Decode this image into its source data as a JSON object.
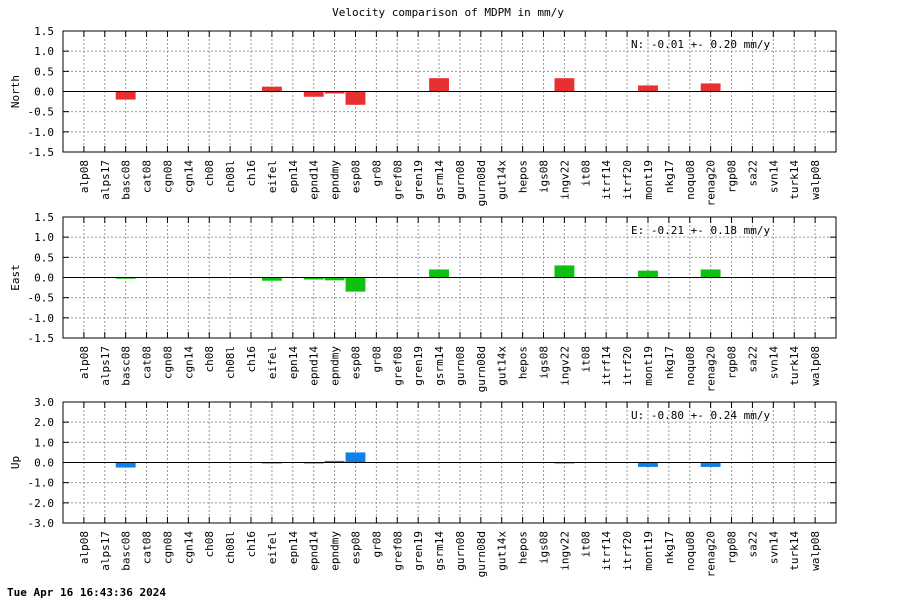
{
  "title": "Velocity comparison of MDPM in mm/y",
  "timestamp": "Tue Apr 16 16:43:36 2024",
  "chart_data": [
    {
      "type": "bar",
      "ylabel": "North",
      "ylim": [
        -1.5,
        1.5
      ],
      "yticks": [
        "-1.5",
        "-1.0",
        "-0.5",
        "0.0",
        "0.5",
        "1.0",
        "1.5"
      ],
      "ytick_values": [
        -1.5,
        -1.0,
        -0.5,
        0.0,
        0.5,
        1.0,
        1.5
      ],
      "grid": true,
      "color": "#e83030",
      "annotation": "N:  -0.01 +-  0.20 mm/y",
      "categories": [
        "alp08",
        "alps17",
        "basc08",
        "cat08",
        "cgn08",
        "cgn14",
        "ch08",
        "ch08l",
        "ch16",
        "eifel",
        "epn14",
        "epnd14",
        "epndmy",
        "esp08",
        "gr08",
        "gref08",
        "gren19",
        "gsrm14",
        "gurn08",
        "gurn08d",
        "gut14x",
        "hepos",
        "igs08",
        "ingv22",
        "it08",
        "itrf14",
        "itrf20",
        "mont19",
        "nkg17",
        "noqu08",
        "renag20",
        "rgp08",
        "sa22",
        "svn14",
        "turk14",
        "walp08"
      ],
      "values": [
        0,
        0,
        -0.2,
        0,
        0,
        0,
        0,
        0,
        0,
        0.12,
        0,
        -0.13,
        -0.05,
        -0.33,
        0,
        0,
        0,
        0.33,
        0,
        0,
        0,
        0,
        0,
        0.33,
        0,
        0,
        0,
        0.15,
        0,
        0,
        0.2,
        0,
        0,
        0,
        0,
        0
      ]
    },
    {
      "type": "bar",
      "ylabel": "East",
      "ylim": [
        -1.5,
        1.5
      ],
      "yticks": [
        "-1.5",
        "-1.0",
        "-0.5",
        "0.0",
        "0.5",
        "1.0",
        "1.5"
      ],
      "ytick_values": [
        -1.5,
        -1.0,
        -0.5,
        0.0,
        0.5,
        1.0,
        1.5
      ],
      "grid": true,
      "color": "#10c010",
      "annotation": "E:  -0.21 +-  0.18 mm/y",
      "categories": [
        "alp08",
        "alps17",
        "basc08",
        "cat08",
        "cgn08",
        "cgn14",
        "ch08",
        "ch08l",
        "ch16",
        "eifel",
        "epn14",
        "epnd14",
        "epndmy",
        "esp08",
        "gr08",
        "gref08",
        "gren19",
        "gsrm14",
        "gurn08",
        "gurn08d",
        "gut14x",
        "hepos",
        "igs08",
        "ingv22",
        "it08",
        "itrf14",
        "itrf20",
        "mont19",
        "nkg17",
        "noqu08",
        "renag20",
        "rgp08",
        "sa22",
        "svn14",
        "turk14",
        "walp08"
      ],
      "values": [
        0,
        0,
        -0.03,
        0,
        0,
        0,
        0,
        0,
        0,
        -0.08,
        0,
        -0.05,
        -0.07,
        -0.35,
        0,
        0,
        0,
        0.2,
        0,
        0,
        0,
        0,
        0,
        0.3,
        0,
        0,
        0,
        0.17,
        0,
        0,
        0.2,
        0,
        0,
        0,
        0,
        0
      ]
    },
    {
      "type": "bar",
      "ylabel": "Up",
      "ylim": [
        -3.0,
        3.0
      ],
      "yticks": [
        "-3.0",
        "-2.0",
        "-1.0",
        "0.0",
        "1.0",
        "2.0",
        "3.0"
      ],
      "ytick_values": [
        -3.0,
        -2.0,
        -1.0,
        0.0,
        1.0,
        2.0,
        3.0
      ],
      "grid": true,
      "color": "#1080e8",
      "annotation": "U:  -0.80 +-  0.24 mm/y",
      "categories": [
        "alp08",
        "alps17",
        "basc08",
        "cat08",
        "cgn08",
        "cgn14",
        "ch08",
        "ch08l",
        "ch16",
        "eifel",
        "epn14",
        "epnd14",
        "epndmy",
        "esp08",
        "gr08",
        "gref08",
        "gren19",
        "gsrm14",
        "gurn08",
        "gurn08d",
        "gut14x",
        "hepos",
        "igs08",
        "ingv22",
        "it08",
        "itrf14",
        "itrf20",
        "mont19",
        "nkg17",
        "noqu08",
        "renag20",
        "rgp08",
        "sa22",
        "svn14",
        "turk14",
        "walp08"
      ],
      "values": [
        0,
        0,
        -0.25,
        0,
        0,
        0,
        0,
        0,
        0,
        -0.05,
        0,
        -0.05,
        0.08,
        0.5,
        0,
        0,
        0,
        0,
        0,
        0,
        0,
        0,
        0,
        -0.05,
        0,
        0,
        0,
        -0.22,
        0,
        0,
        -0.22,
        0,
        0,
        0,
        0,
        0
      ]
    }
  ]
}
